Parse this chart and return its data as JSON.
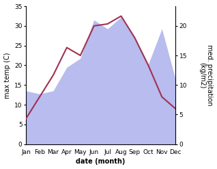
{
  "months": [
    "Jan",
    "Feb",
    "Mar",
    "Apr",
    "May",
    "Jun",
    "Jul",
    "Aug",
    "Sep",
    "Oct",
    "Nov",
    "Dec"
  ],
  "temp": [
    6.5,
    12.0,
    17.5,
    24.5,
    22.5,
    30.0,
    30.5,
    32.5,
    27.0,
    20.0,
    12.0,
    9.0
  ],
  "precip": [
    9.0,
    8.5,
    9.0,
    13.0,
    14.5,
    21.0,
    19.5,
    21.5,
    18.0,
    13.5,
    19.5,
    11.0
  ],
  "temp_color": "#a03050",
  "precip_fill_color": "#b8bcee",
  "xlabel": "date (month)",
  "ylabel_left": "max temp (C)",
  "ylabel_right": "med. precipitation\n(kg/m2)",
  "ylim_left": [
    0,
    35
  ],
  "ylim_right": [
    0,
    23.33
  ],
  "yticks_left": [
    0,
    5,
    10,
    15,
    20,
    25,
    30,
    35
  ],
  "yticks_right": [
    0,
    5,
    10,
    15,
    20
  ],
  "axis_fontsize": 7,
  "tick_fontsize": 6.5,
  "linewidth": 1.5
}
